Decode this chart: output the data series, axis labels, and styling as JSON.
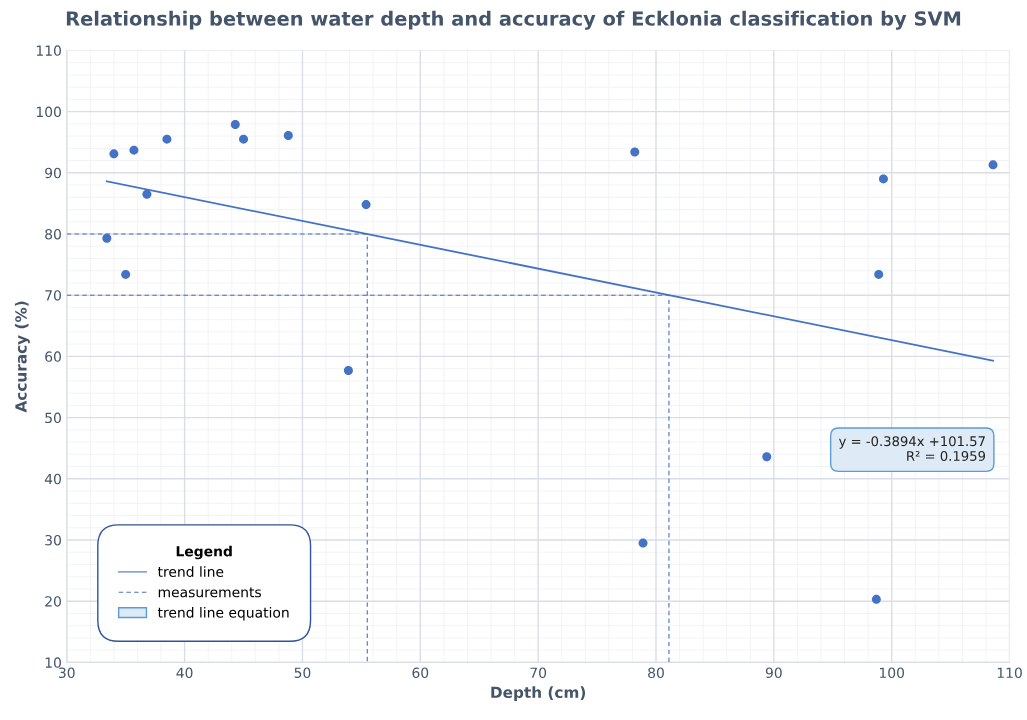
{
  "chart_data": {
    "type": "scatter",
    "title": "Relationship between water depth and accuracy of Ecklonia classification by SVM",
    "xlabel": "Depth (cm)",
    "ylabel": "Accuracy (%)",
    "legend_title": "Legend",
    "xlim": [
      30,
      110
    ],
    "xticks": [
      30,
      40,
      50,
      60,
      70,
      80,
      90,
      100,
      110
    ],
    "ylim": [
      10,
      110
    ],
    "yticks": [
      10,
      20,
      30,
      40,
      50,
      60,
      70,
      80,
      90,
      100,
      110
    ],
    "grid": true,
    "legend": "bottom left",
    "marker": "circle",
    "series": [
      {
        "color": "#4472c4",
        "x": [
          33.4,
          34.0,
          35.0,
          35.7,
          36.8,
          38.5,
          44.3,
          45.0,
          48.8,
          55.4,
          53.9,
          78.2,
          78.9,
          89.4,
          98.7,
          98.9,
          99.3,
          108.6
        ],
        "values": [
          79.3,
          93.1,
          73.4,
          93.7,
          86.5,
          95.5,
          97.9,
          95.5,
          96.1,
          84.8,
          57.7,
          93.4,
          29.5,
          43.6,
          20.3,
          73.4,
          89.0,
          91.3
        ]
      },
      {
        "type": "line",
        "name": "trend line",
        "color": "#4472c4",
        "line_style": "solid",
        "marker": "none",
        "x": [
          33.4,
          108.6
        ],
        "values": [
          88.6,
          59.3
        ]
      },
      {
        "type": "line",
        "name": "measurements",
        "color": "#4472c4",
        "line_style": "dashed",
        "marker": "none",
        "x": [
          30,
          55.5,
          55.5,
          null,
          30,
          81.1,
          81.1
        ],
        "values": [
          80,
          80,
          10,
          null,
          70,
          70,
          10
        ]
      }
    ],
    "annotations": [
      "y = -0.3894x +101.57\nR² = 0.1959",
      "trend line equation"
    ]
  }
}
